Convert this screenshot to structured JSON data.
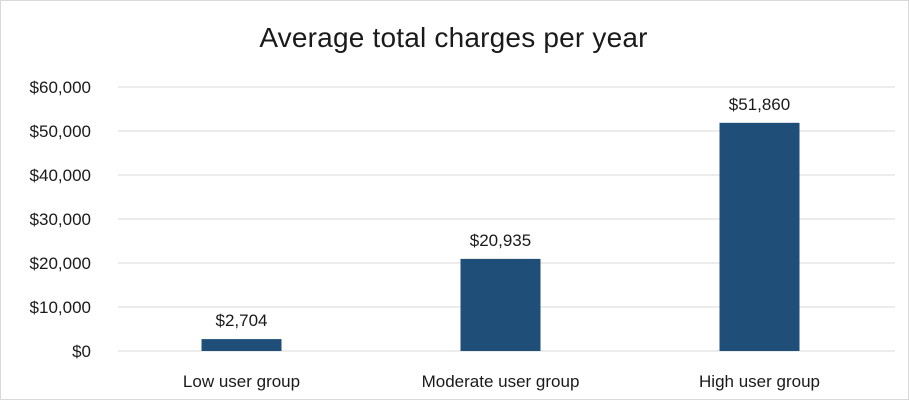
{
  "chart_data": {
    "type": "bar",
    "title": "Average total charges per year",
    "xlabel": "",
    "ylabel": "",
    "categories": [
      "Low user group",
      "Moderate user group",
      "High user group"
    ],
    "values": [
      2704,
      20935,
      51860
    ],
    "data_labels": [
      "$2,704",
      "$20,935",
      "$51,860"
    ],
    "ylim": [
      0,
      60000
    ],
    "y_ticks": [
      0,
      10000,
      20000,
      30000,
      40000,
      50000,
      60000
    ],
    "y_tick_labels": [
      "$0",
      "$10,000",
      "$20,000",
      "$30,000",
      "$40,000",
      "$50,000",
      "$60,000"
    ],
    "grid": true,
    "legend": "none",
    "colors": {
      "bar": "#1f4e79",
      "grid": "#d9d9d9",
      "text": "#1a1a1a"
    }
  }
}
